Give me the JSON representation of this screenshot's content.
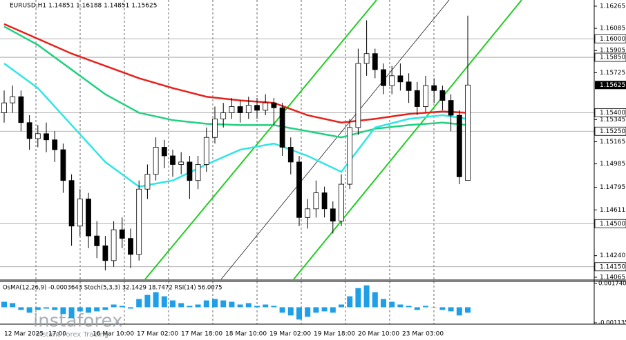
{
  "chart_data": {
    "type": "candlestick",
    "title": "EURUSD,H1  1.14851 1.16188 1.14851 1.15625",
    "open": [
      1.154,
      1.1548,
      1.1553,
      1.1532,
      1.1519,
      1.1523,
      1.1518,
      1.151,
      1.1485,
      1.1448,
      1.147,
      1.144,
      1.1432,
      1.142,
      1.1445,
      1.1438,
      1.1425,
      1.1478,
      1.149,
      1.1512,
      1.1505,
      1.1498,
      1.15,
      1.1485,
      1.1498,
      1.152,
      1.1535,
      1.154,
      1.1545,
      1.154,
      1.1546,
      1.1542,
      1.1548,
      1.1544,
      1.1512,
      1.15,
      1.1455,
      1.1462,
      1.1475,
      1.1462,
      1.1452,
      1.1482,
      1.1528,
      1.158,
      1.1588,
      1.1575,
      1.1562,
      1.157,
      1.1565,
      1.1558,
      1.1545,
      1.1562,
      1.1558,
      1.155,
      1.1538,
      1.14851
    ],
    "high": [
      1.1558,
      1.1562,
      1.1558,
      1.1538,
      1.153,
      1.1532,
      1.1525,
      1.1515,
      1.149,
      1.1478,
      1.1475,
      1.1452,
      1.144,
      1.1452,
      1.1455,
      1.1446,
      1.1485,
      1.1498,
      1.152,
      1.1518,
      1.151,
      1.1508,
      1.1505,
      1.1505,
      1.1528,
      1.1545,
      1.1548,
      1.1552,
      1.155,
      1.1553,
      1.1552,
      1.1555,
      1.1552,
      1.1548,
      1.152,
      1.1505,
      1.147,
      1.1485,
      1.148,
      1.1468,
      1.149,
      1.1535,
      1.1592,
      1.1615,
      1.1592,
      1.158,
      1.1578,
      1.158,
      1.1572,
      1.1565,
      1.157,
      1.1568,
      1.1562,
      1.1555,
      1.1542,
      1.16188
    ],
    "low": [
      1.1532,
      1.154,
      1.1525,
      1.151,
      1.1512,
      1.1508,
      1.15,
      1.1475,
      1.1432,
      1.144,
      1.143,
      1.1422,
      1.1412,
      1.1415,
      1.143,
      1.1414,
      1.142,
      1.147,
      1.1485,
      1.1495,
      1.1488,
      1.149,
      1.147,
      1.1478,
      1.1492,
      1.1515,
      1.1528,
      1.1535,
      1.1532,
      1.1535,
      1.1535,
      1.1538,
      1.153,
      1.1505,
      1.149,
      1.1448,
      1.1446,
      1.1455,
      1.1455,
      1.1442,
      1.1448,
      1.1478,
      1.1522,
      1.157,
      1.1568,
      1.1555,
      1.1555,
      1.1558,
      1.1548,
      1.1538,
      1.154,
      1.1548,
      1.1542,
      1.1525,
      1.1482,
      1.14851
    ],
    "close": [
      1.1548,
      1.1553,
      1.1532,
      1.1519,
      1.1523,
      1.1518,
      1.151,
      1.1485,
      1.1448,
      1.147,
      1.144,
      1.1432,
      1.142,
      1.1445,
      1.1438,
      1.1425,
      1.1478,
      1.149,
      1.1512,
      1.1505,
      1.1498,
      1.15,
      1.1485,
      1.1498,
      1.152,
      1.1535,
      1.154,
      1.1545,
      1.154,
      1.1546,
      1.1542,
      1.1548,
      1.1544,
      1.1512,
      1.15,
      1.1455,
      1.1462,
      1.1475,
      1.1462,
      1.1452,
      1.1482,
      1.1528,
      1.158,
      1.1588,
      1.1575,
      1.1562,
      1.157,
      1.1565,
      1.1558,
      1.1545,
      1.1562,
      1.1558,
      1.155,
      1.1538,
      1.1488,
      1.15625
    ],
    "ma_x": [
      0,
      4,
      8,
      12,
      16,
      20,
      24,
      28,
      32,
      36,
      40,
      44,
      48,
      52,
      55
    ],
    "series": [
      {
        "color": "#e8201a",
        "values": [
          1.1612,
          1.16,
          1.1588,
          1.1578,
          1.1568,
          1.156,
          1.1553,
          1.155,
          1.1548,
          1.1538,
          1.1532,
          1.1535,
          1.1539,
          1.1541,
          1.154
        ]
      },
      {
        "color": "#1fd17f",
        "values": [
          1.161,
          1.1595,
          1.1575,
          1.1555,
          1.154,
          1.1534,
          1.1531,
          1.153,
          1.153,
          1.1525,
          1.152,
          1.1527,
          1.153,
          1.1532,
          1.153
        ]
      },
      {
        "color": "#2ee6e6",
        "values": [
          1.158,
          1.156,
          1.153,
          1.15,
          1.148,
          1.1485,
          1.1498,
          1.151,
          1.1515,
          1.1505,
          1.1492,
          1.1528,
          1.1535,
          1.1538,
          1.1535
        ]
      }
    ],
    "ylim": [
      1.14048,
      1.16315
    ],
    "yticks": [
      1.16265,
      1.16085,
      {
        "value": 1.15905,
        "label": "1.15905"
      },
      1.15725,
      1.15345,
      1.15165,
      1.14985,
      1.14795,
      1.14611,
      {
        "value": 1.1424,
        "label": "1.14240"
      },
      1.14065
    ],
    "levels": [
      {
        "value": 1.16,
        "label": "1.16000"
      },
      {
        "value": 1.1585,
        "label": "1.15850"
      },
      {
        "value": 1.154,
        "label": "1.15400"
      },
      {
        "value": 1.1525,
        "label": "1.15250"
      },
      {
        "value": 1.145,
        "label": "1.14500"
      },
      {
        "value": 1.1415,
        "label": "1.14150"
      }
    ],
    "xticks": [
      "12 Mar 2025",
      "17:00",
      "16 Mar 10:00",
      "17 Mar 02:00",
      "17 Mar 18:00",
      "18 Mar 10:00",
      "19 Mar 02:00",
      "19 Mar 18:00",
      "20 Mar 10:00",
      "23 Mar 03:00"
    ],
    "indicator": {
      "label": "OsMA(12,26,9) -0.0003643 Stoch(5,3,3) 32.1429 18.7472 RSI(14) 56.0075",
      "color": "#1e9fe8",
      "ylim": [
        -0.001135,
        0.00174
      ],
      "yticks": [
        {
          "value": 0.00174,
          "label": "0.001740"
        },
        -0.001135
      ],
      "values": [
        0.0004,
        0.0003,
        -0.0002,
        -0.0004,
        -0.0002,
        -0.0001,
        -0.0002,
        -0.0005,
        -0.0008,
        -0.0003,
        -0.0004,
        -0.0003,
        -0.0002,
        0.0002,
        0.0001,
        -0.0001,
        0.0006,
        0.0009,
        0.0011,
        0.0008,
        0.0005,
        0.0003,
        0.0001,
        0.0002,
        0.0005,
        0.0006,
        0.0005,
        0.0004,
        0.0002,
        0.0003,
        0.0001,
        0.0002,
        0.0001,
        -0.0004,
        -0.0006,
        -0.0009,
        -0.0007,
        -0.0004,
        -0.0003,
        -0.0004,
        0.0002,
        0.0008,
        0.0014,
        0.0016,
        0.0011,
        0.0006,
        0.0004,
        0.0002,
        0.0001,
        -0.0002,
        0.0001,
        0,
        -0.0002,
        -0.0003,
        -0.0006,
        -0.0004
      ]
    },
    "watermark": {
      "brand": "instaforex",
      "tagline": "Instant Forex Trading"
    }
  }
}
